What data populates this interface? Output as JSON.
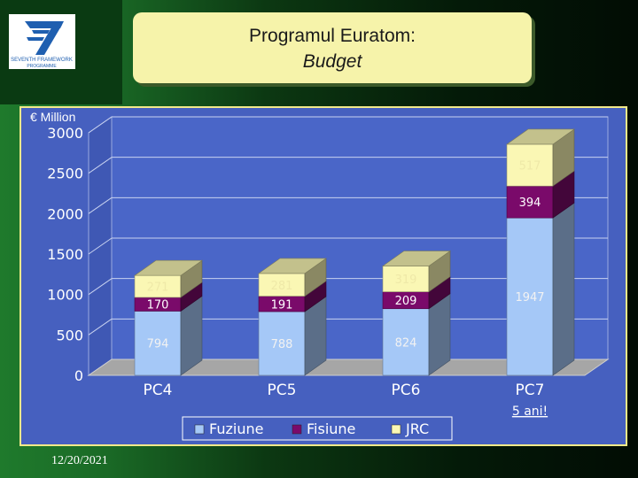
{
  "header": {
    "title_line1": "Programul Euratom:",
    "title_line2": "Budget"
  },
  "logo": {
    "icon": "fp7-logo-icon",
    "text_line1": "SEVENTH FRAMEWORK",
    "text_line2": "PROGRAMME"
  },
  "footer": {
    "date": "12/20/2021"
  },
  "colors": {
    "fuziune": "#a5c8f7",
    "fisiune": "#7a0a6a",
    "jrc": "#faf7b4",
    "panel": "#4660bf",
    "floor": "#a6a6a6"
  },
  "chart_data": {
    "type": "bar",
    "stacked": true,
    "three_d": true,
    "unit_label": "€ Million",
    "categories": [
      "PC4",
      "PC5",
      "PC6",
      "PC7"
    ],
    "category_note": {
      "category": "PC7",
      "text": "5 ani!"
    },
    "series": [
      {
        "name": "Fuziune",
        "values": [
          794,
          788,
          824,
          1947
        ],
        "labels": [
          "794",
          "788",
          "824",
          "1947"
        ]
      },
      {
        "name": "Fisiune",
        "values": [
          170,
          191,
          209,
          394
        ],
        "labels": [
          "170",
          "191",
          "209",
          "394"
        ]
      },
      {
        "name": "JRC",
        "values": [
          271,
          281,
          319,
          517
        ],
        "labels": [
          "271",
          "281",
          "319",
          "517"
        ]
      }
    ],
    "ylim": [
      0,
      3000
    ],
    "yticks": [
      0,
      500,
      1000,
      1500,
      2000,
      2500,
      3000
    ],
    "ytick_labels": [
      "0",
      "500",
      "1000",
      "1500",
      "2000",
      "2500",
      "3000"
    ],
    "grid": true,
    "legend_position": "bottom"
  }
}
